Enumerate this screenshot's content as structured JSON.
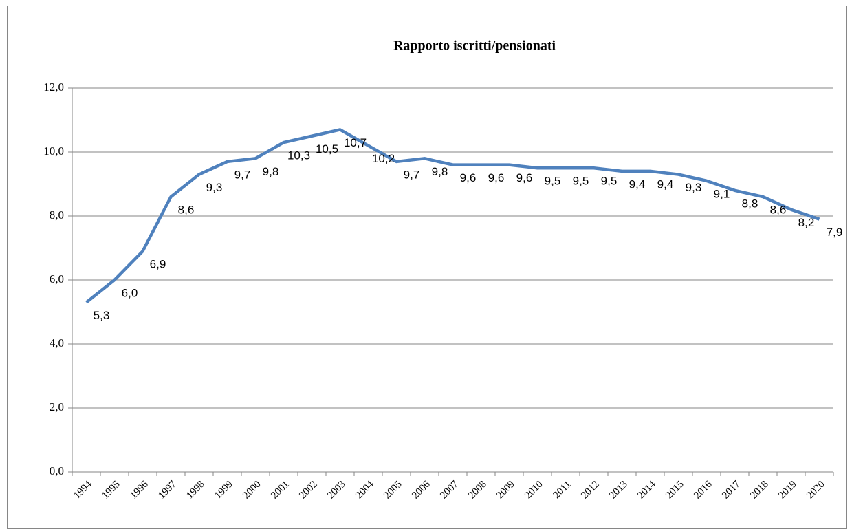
{
  "chart_data": {
    "type": "line",
    "title": "Rapporto iscritti/pensionati",
    "categories": [
      "1994",
      "1995",
      "1996",
      "1997",
      "1998",
      "1999",
      "2000",
      "2001",
      "2002",
      "2003",
      "2004",
      "2005",
      "2006",
      "2007",
      "2008",
      "2009",
      "2010",
      "2011",
      "2012",
      "2013",
      "2014",
      "2015",
      "2016",
      "2017",
      "2018",
      "2019",
      "2020"
    ],
    "series": [
      {
        "name": "Rapporto iscritti/pensionati",
        "color": "#4f81bd",
        "values": [
          5.3,
          6.0,
          6.9,
          8.6,
          9.3,
          9.7,
          9.8,
          10.3,
          10.5,
          10.7,
          10.2,
          9.7,
          9.8,
          9.6,
          9.6,
          9.6,
          9.5,
          9.5,
          9.5,
          9.4,
          9.4,
          9.3,
          9.1,
          8.8,
          8.6,
          8.2,
          7.9
        ],
        "value_labels": [
          "5,3",
          "6,0",
          "6,9",
          "8,6",
          "9,3",
          "9,7",
          "9,8",
          "10,3",
          "10,5",
          "10,7",
          "10,2",
          "9,7",
          "9,8",
          "9,6",
          "9,6",
          "9,6",
          "9,5",
          "9,5",
          "9,5",
          "9,4",
          "9,4",
          "9,3",
          "9,1",
          "8,8",
          "8,6",
          "8,2",
          "7,9"
        ]
      }
    ],
    "ylim": [
      0,
      12
    ],
    "yticks": [
      {
        "value": 0,
        "label": "0,0"
      },
      {
        "value": 2,
        "label": "2,0"
      },
      {
        "value": 4,
        "label": "4,0"
      },
      {
        "value": 6,
        "label": "6,0"
      },
      {
        "value": 8,
        "label": "8,0"
      },
      {
        "value": 10,
        "label": "10,0"
      },
      {
        "value": 12,
        "label": "12,0"
      }
    ],
    "grid": true
  }
}
